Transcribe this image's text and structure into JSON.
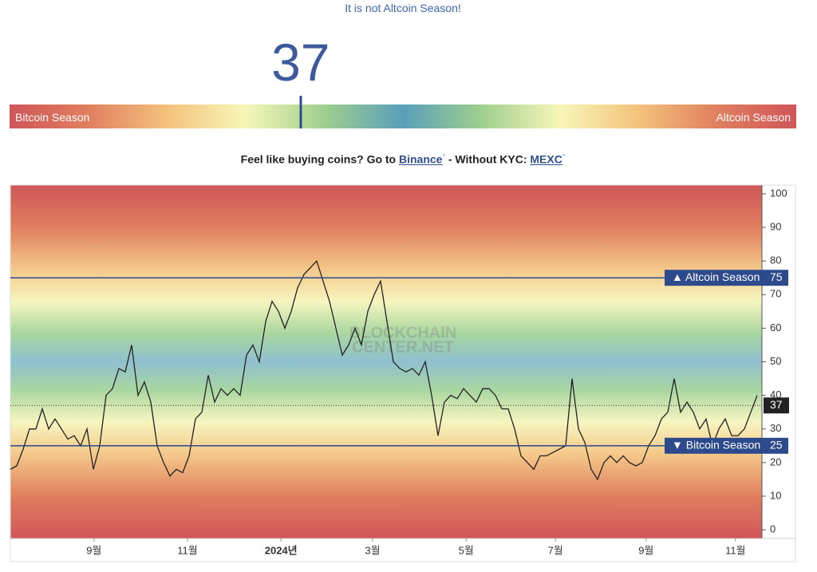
{
  "header": {
    "status": "It is not Altcoin Season!",
    "index": 37,
    "left_label": "Bitcoin Season",
    "right_label": "Altcoin Season"
  },
  "promo": {
    "lead": "Feel like buying coins? Go to",
    "link1": "Binance",
    "star1": "*",
    "mid": "- Without KYC:",
    "link2": "MEXC",
    "star2": "*"
  },
  "chart_data": {
    "type": "line",
    "color": "#222222",
    "watermark": [
      "BLOCKCHAIN",
      "CENTER.NET"
    ],
    "values": [
      18,
      19,
      24,
      30,
      30,
      36,
      30,
      33,
      30,
      27,
      28,
      25,
      30,
      18,
      25,
      40,
      42,
      48,
      47,
      55,
      40,
      44,
      38,
      25,
      20,
      16,
      18,
      17,
      22,
      33,
      35,
      46,
      38,
      42,
      40,
      42,
      40,
      52,
      55,
      50,
      62,
      68,
      65,
      60,
      65,
      72,
      76,
      78,
      80,
      74,
      68,
      60,
      52,
      55,
      60,
      55,
      65,
      70,
      74,
      62,
      50,
      48,
      47,
      48,
      46,
      50,
      40,
      28,
      38,
      40,
      39,
      42,
      40,
      38,
      42,
      42,
      40,
      36,
      36,
      30,
      22,
      20,
      18,
      22,
      22,
      23,
      24,
      25,
      45,
      30,
      26,
      18,
      15,
      20,
      22,
      20,
      22,
      20,
      19,
      20,
      25,
      28,
      33,
      35,
      45,
      35,
      38,
      35,
      30,
      33,
      25,
      30,
      33,
      28,
      28,
      30,
      35,
      40
    ],
    "xlim": [
      0,
      117.75
    ],
    "xticks": [
      {
        "value": 13.1,
        "label": "9월"
      },
      {
        "value": 27.75,
        "label": "11월"
      },
      {
        "value": 42.4,
        "label": "2024년"
      },
      {
        "value": 56.75,
        "label": "3월"
      },
      {
        "value": 71.4,
        "label": "5월"
      },
      {
        "value": 85.4,
        "label": "7월"
      },
      {
        "value": 99.6,
        "label": "9월"
      },
      {
        "value": 113.6,
        "label": "11월"
      }
    ],
    "ylim": [
      -2.6,
      102.6
    ],
    "yticks": [
      0,
      10,
      20,
      30,
      40,
      50,
      60,
      70,
      80,
      90,
      100
    ],
    "thresholds": [
      {
        "value": 75,
        "label": "▲ Altcoin Season",
        "color": "#2c4a8c"
      },
      {
        "value": 25,
        "label": "▼ Bitcoin Season",
        "color": "#2c4a8c"
      }
    ]
  }
}
